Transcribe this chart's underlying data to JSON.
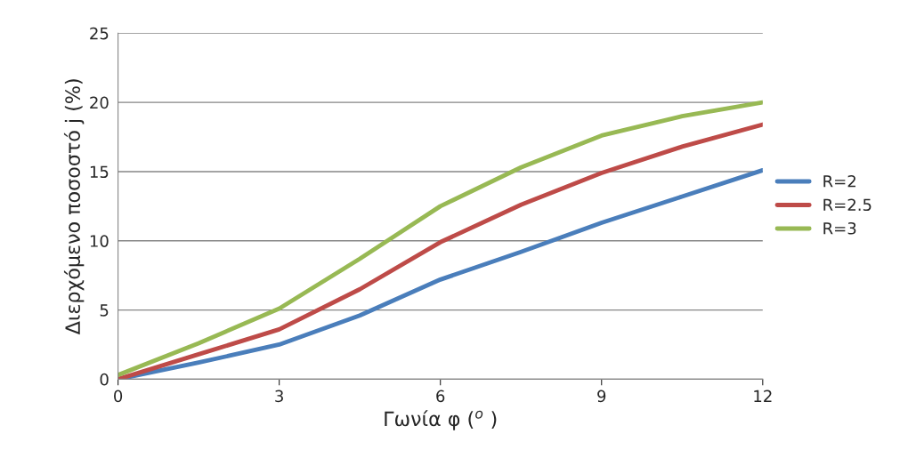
{
  "chart_data": {
    "type": "line",
    "xlabel": "Γωνία φ ($^{o}$ )",
    "ylabel": "Διερχόμενο ποσοστό j (%)",
    "x": [
      0,
      1.5,
      3,
      4.5,
      6,
      7.5,
      9,
      10.5,
      12
    ],
    "series": [
      {
        "name": "R=2",
        "color": "#4a7ebb",
        "values": [
          0,
          1.2,
          2.5,
          4.6,
          7.2,
          9.2,
          11.3,
          13.2,
          15.1
        ]
      },
      {
        "name": "R=2.5",
        "color": "#be4b48",
        "values": [
          0,
          1.8,
          3.6,
          6.5,
          9.9,
          12.6,
          14.9,
          16.8,
          18.4
        ]
      },
      {
        "name": "R=3",
        "color": "#98b954",
        "values": [
          0.3,
          2.6,
          5.1,
          8.7,
          12.5,
          15.3,
          17.6,
          19.0,
          20.0
        ]
      }
    ],
    "xlim": [
      0,
      12
    ],
    "xticks": [
      0,
      3,
      6,
      9,
      12
    ],
    "ylim": [
      0,
      25
    ],
    "yticks": [
      0,
      5,
      10,
      15,
      20,
      25
    ],
    "grid": "y",
    "legend": "right",
    "marker": "none",
    "line_style": "solid"
  }
}
